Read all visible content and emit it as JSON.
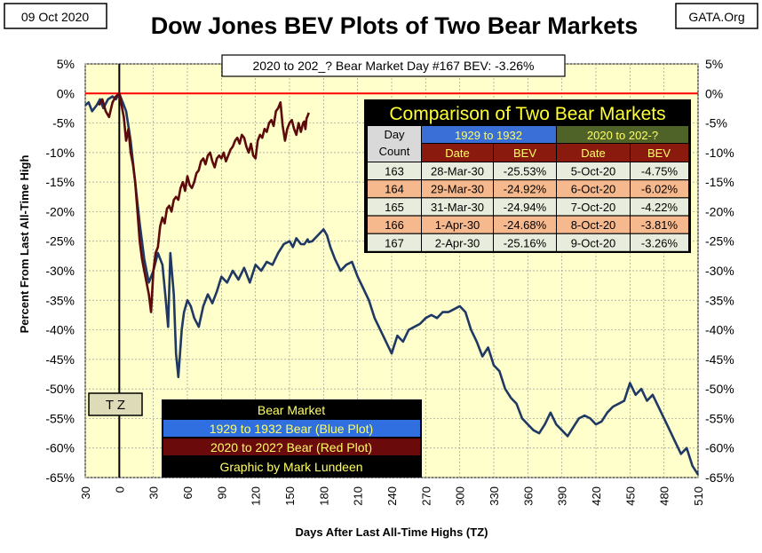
{
  "header": {
    "date": "09 Oct 2020",
    "title": "Dow Jones BEV Plots of Two Bear Markets",
    "source": "GATA.Org",
    "status": "2020 to 202_? Bear Market Day #167 BEV: -3.26%"
  },
  "colors": {
    "page_bg": "#ffffff",
    "plot_bg": "#ffffcc",
    "blue_plot": "#1f3864",
    "red_plot": "#5c0a0a",
    "zero_line": "#ff0000",
    "grid": "#9a9a9a"
  },
  "chart_data": {
    "type": "line",
    "title": "Dow Jones BEV Plots of Two Bear Markets",
    "xlabel": "Days After Last All-Time Highs (TZ)",
    "ylabel": "Percent From Last All-Time High",
    "xlim": [
      -30,
      510
    ],
    "ylim": [
      -65,
      5
    ],
    "x_ticks": [
      -30,
      0,
      30,
      60,
      90,
      120,
      150,
      180,
      210,
      240,
      270,
      300,
      330,
      360,
      390,
      420,
      450,
      480,
      510
    ],
    "x_tick_labels": [
      "30",
      "0",
      "30",
      "60",
      "90",
      "120",
      "150",
      "180",
      "210",
      "240",
      "270",
      "300",
      "330",
      "360",
      "390",
      "420",
      "450",
      "480",
      "510"
    ],
    "y_ticks": [
      5,
      0,
      -5,
      -10,
      -15,
      -20,
      -25,
      -30,
      -35,
      -40,
      -45,
      -50,
      -55,
      -60,
      -65
    ],
    "y_tick_labels": [
      "5%",
      "0%",
      "-5%",
      "-10%",
      "-15%",
      "-20%",
      "-25%",
      "-30%",
      "-35%",
      "-40%",
      "-45%",
      "-50%",
      "-55%",
      "-60%",
      "-65%"
    ],
    "grid": true,
    "zero_line": 0,
    "tz_marker": {
      "x": 0,
      "label": "T Z"
    },
    "series": [
      {
        "name": "1929 to 1932 Bear (Blue Plot)",
        "color": "#1f3864",
        "x": [
          -30,
          -27,
          -24,
          -20,
          -17,
          -14,
          -10,
          -6,
          -3,
          0,
          3,
          6,
          10,
          14,
          18,
          22,
          26,
          30,
          34,
          38,
          41,
          43,
          45,
          48,
          50,
          52,
          55,
          57,
          60,
          63,
          66,
          70,
          74,
          78,
          82,
          86,
          90,
          95,
          100,
          105,
          110,
          115,
          120,
          125,
          130,
          135,
          140,
          145,
          150,
          153,
          156,
          160,
          163,
          166,
          167,
          170,
          175,
          180,
          183,
          186,
          190,
          195,
          200,
          205,
          210,
          215,
          220,
          225,
          230,
          235,
          240,
          245,
          250,
          255,
          260,
          265,
          270,
          275,
          280,
          285,
          290,
          295,
          300,
          305,
          310,
          315,
          320,
          325,
          330,
          335,
          340,
          345,
          350,
          355,
          360,
          365,
          370,
          375,
          380,
          385,
          390,
          395,
          400,
          405,
          410,
          415,
          420,
          425,
          430,
          435,
          440,
          445,
          450,
          455,
          460,
          465,
          470,
          475,
          480,
          485,
          490,
          495,
          500,
          505,
          510
        ],
        "values": [
          -2.0,
          -1.5,
          -3.0,
          -2.0,
          -1.0,
          -2.5,
          -1.0,
          -0.5,
          -1.0,
          0.0,
          -1.5,
          -3.0,
          -8.0,
          -15.0,
          -22.0,
          -28.0,
          -32.0,
          -30.0,
          -27.0,
          -29.0,
          -35.0,
          -39.5,
          -27.0,
          -34.0,
          -44.0,
          -48.0,
          -40.0,
          -37.0,
          -35.0,
          -36.0,
          -38.0,
          -39.5,
          -36.0,
          -34.0,
          -35.5,
          -33.5,
          -31.0,
          -32.0,
          -30.0,
          -31.5,
          -29.5,
          -32.0,
          -29.0,
          -30.0,
          -28.5,
          -29.0,
          -27.0,
          -25.5,
          -25.0,
          -26.0,
          -24.5,
          -25.5,
          -25.53,
          -24.68,
          -25.16,
          -25.0,
          -24.0,
          -23.0,
          -24.0,
          -26.0,
          -28.0,
          -30.0,
          -29.0,
          -28.5,
          -31.0,
          -33.0,
          -35.0,
          -38.0,
          -40.0,
          -42.0,
          -44.0,
          -41.0,
          -42.0,
          -40.0,
          -39.5,
          -39.0,
          -38.0,
          -37.5,
          -38.0,
          -37.0,
          -37.0,
          -36.5,
          -36.0,
          -37.0,
          -40.0,
          -42.0,
          -44.5,
          -43.0,
          -46.0,
          -47.0,
          -50.0,
          -51.5,
          -52.5,
          -55.0,
          -56.0,
          -57.0,
          -57.5,
          -56.0,
          -54.0,
          -56.0,
          -57.0,
          -58.0,
          -56.5,
          -55.0,
          -54.5,
          -55.0,
          -56.0,
          -55.5,
          -54.0,
          -53.0,
          -52.5,
          -52.0,
          -49.0,
          -51.0,
          -50.0,
          -52.0,
          -51.0,
          -53.0,
          -55.0,
          -57.0,
          -59.0,
          -61.0,
          -60.0,
          -63.0,
          -64.5
        ]
      },
      {
        "name": "2020 to 202? Bear (Red Plot)",
        "color": "#5c0a0a",
        "x": [
          -18,
          -15,
          -12,
          -9,
          -6,
          -3,
          0,
          2,
          4,
          6,
          8,
          10,
          12,
          14,
          16,
          18,
          20,
          22,
          24,
          26,
          28,
          30,
          32,
          34,
          36,
          38,
          40,
          42,
          44,
          46,
          48,
          50,
          52,
          54,
          56,
          58,
          60,
          62,
          64,
          66,
          68,
          70,
          72,
          74,
          76,
          78,
          80,
          82,
          84,
          86,
          88,
          90,
          92,
          94,
          96,
          98,
          100,
          102,
          104,
          106,
          108,
          110,
          112,
          114,
          116,
          118,
          120,
          122,
          124,
          126,
          128,
          130,
          132,
          134,
          136,
          138,
          140,
          142,
          144,
          146,
          148,
          150,
          152,
          154,
          156,
          158,
          160,
          162,
          163,
          164,
          165,
          166,
          167
        ],
        "values": [
          -2.0,
          -1.0,
          -3.0,
          -4.0,
          -1.5,
          -0.5,
          0.0,
          -2.0,
          -4.0,
          -8.0,
          -6.0,
          -10.0,
          -12.0,
          -15.0,
          -20.0,
          -25.0,
          -28.0,
          -30.0,
          -32.0,
          -34.0,
          -37.0,
          -30.0,
          -27.0,
          -26.0,
          -22.5,
          -21.0,
          -22.0,
          -19.5,
          -19.0,
          -20.0,
          -18.0,
          -17.5,
          -18.0,
          -16.0,
          -15.0,
          -16.5,
          -14.0,
          -15.5,
          -16.0,
          -15.0,
          -13.5,
          -13.0,
          -11.5,
          -11.0,
          -12.0,
          -10.5,
          -10.0,
          -11.5,
          -12.5,
          -11.0,
          -10.5,
          -11.0,
          -10.0,
          -11.5,
          -10.5,
          -9.5,
          -9.0,
          -8.0,
          -7.5,
          -8.5,
          -7.0,
          -7.5,
          -9.0,
          -10.0,
          -8.5,
          -10.5,
          -11.0,
          -8.0,
          -7.0,
          -7.5,
          -6.0,
          -6.5,
          -5.0,
          -4.5,
          -5.5,
          -3.0,
          -2.5,
          -1.5,
          -5.5,
          -8.0,
          -6.0,
          -5.0,
          -4.5,
          -6.0,
          -7.0,
          -5.0,
          -6.5,
          -5.0,
          -4.75,
          -6.02,
          -4.22,
          -3.81,
          -3.26
        ]
      }
    ]
  },
  "comparison_table": {
    "title": "Comparison of Two Bear Markets",
    "day_count_header": "Day Count",
    "group1": "1929 to 1932",
    "group2": "2020 to 202-?",
    "date_header": "Date",
    "bev_header": "BEV",
    "rows": [
      {
        "day": "163",
        "d1": "28-Mar-30",
        "b1": "-25.53%",
        "d2": "5-Oct-20",
        "b2": "-4.75%"
      },
      {
        "day": "164",
        "d1": "29-Mar-30",
        "b1": "-24.92%",
        "d2": "6-Oct-20",
        "b2": "-6.02%"
      },
      {
        "day": "165",
        "d1": "31-Mar-30",
        "b1": "-24.94%",
        "d2": "7-Oct-20",
        "b2": "-4.22%"
      },
      {
        "day": "166",
        "d1": "1-Apr-30",
        "b1": "-24.68%",
        "d2": "8-Oct-20",
        "b2": "-3.81%"
      },
      {
        "day": "167",
        "d1": "2-Apr-30",
        "b1": "-25.16%",
        "d2": "9-Oct-20",
        "b2": "-3.26%"
      }
    ]
  },
  "legend": {
    "title": "Bear Market",
    "blue": "1929 to 1932 Bear (Blue Plot)",
    "red": "2020 to 202? Bear (Red Plot)",
    "credit": "Graphic by Mark Lundeen"
  }
}
